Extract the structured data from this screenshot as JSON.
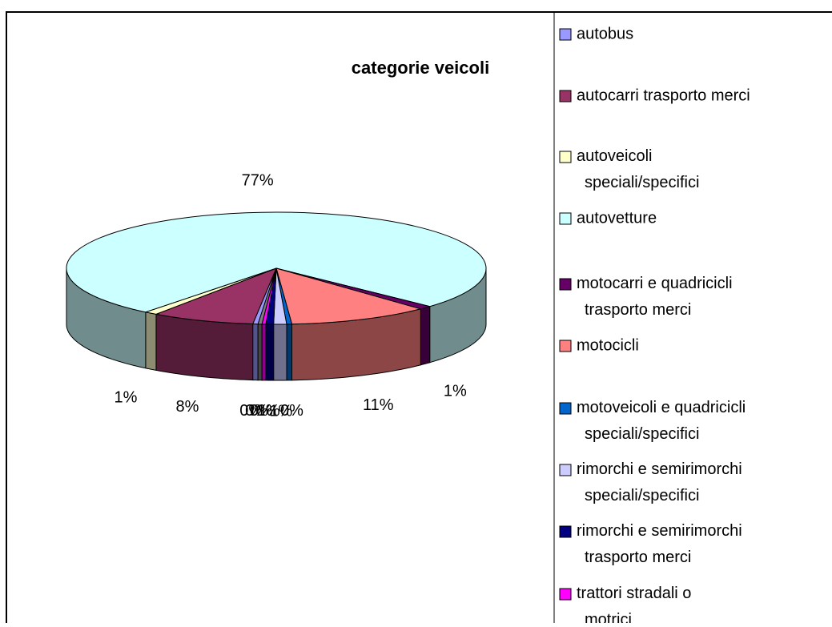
{
  "chart_data": {
    "type": "pie3d",
    "title": "categorie veicoli",
    "categories": [
      "autobus",
      "autocarri trasporto merci",
      "autoveicoli speciali/specifici",
      "autovetture",
      "motocarri e quadricicli trasporto merci",
      "motocicli",
      "motoveicoli e quadricicli speciali/specifici",
      "rimorchi e semirimorchi speciali/specifici",
      "rimorchi e semirimorchi trasporto merci",
      "trattori stradali o motrici",
      null
    ],
    "values": [
      0.4,
      8,
      1,
      77,
      1,
      11,
      0.4,
      1,
      0.6,
      0.3,
      0.3
    ],
    "value_labels": [
      "0%",
      "8%",
      "1%",
      "77%",
      "1%",
      "11%",
      "0%",
      "1%",
      "1%",
      "0%",
      "0%"
    ],
    "colors": [
      "#9999ff",
      "#993366",
      "#ffffcc",
      "#ccffff",
      "#660066",
      "#ff8080",
      "#0066cc",
      "#ccccff",
      "#000080",
      "#ff00ff",
      "#808080"
    ],
    "legend": "right"
  }
}
